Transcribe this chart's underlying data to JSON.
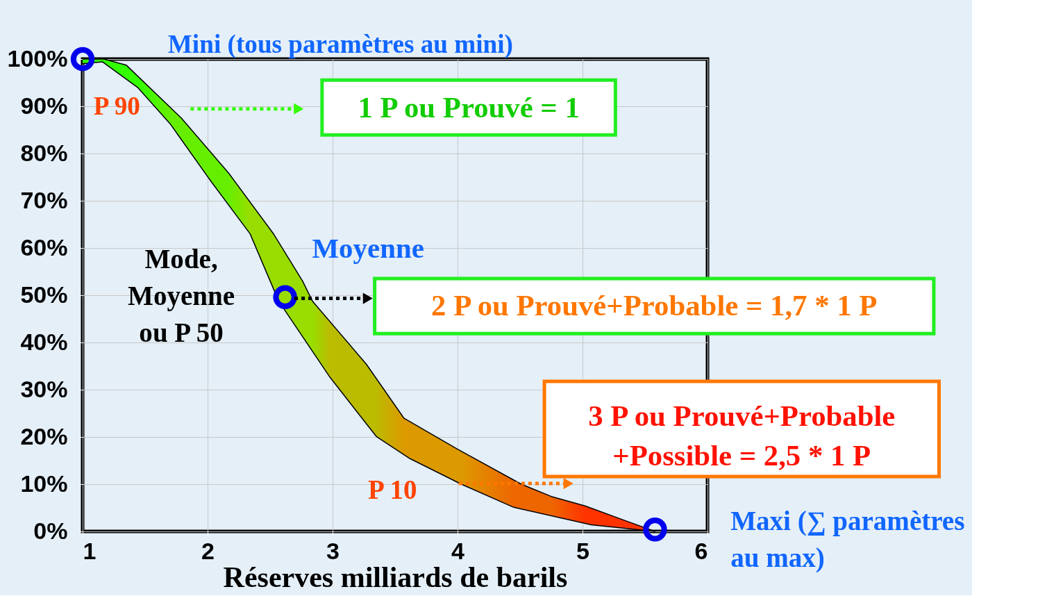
{
  "chart_data": {
    "type": "area",
    "xlabel": "Réserves milliards de barils",
    "xlim": [
      1,
      6
    ],
    "xticks": [
      1,
      2,
      3,
      4,
      5,
      6
    ],
    "ylim": [
      0,
      100
    ],
    "yticks": [
      {
        "value": 0,
        "label": "0%"
      },
      {
        "value": 10,
        "label": "10%"
      },
      {
        "value": 20,
        "label": "20%"
      },
      {
        "value": 30,
        "label": "30%"
      },
      {
        "value": 40,
        "label": "40%"
      },
      {
        "value": 50,
        "label": "50%"
      },
      {
        "value": 60,
        "label": "60%"
      },
      {
        "value": 70,
        "label": "70%"
      },
      {
        "value": 80,
        "label": "80%"
      },
      {
        "value": 90,
        "label": "90%"
      },
      {
        "value": 100,
        "label": "100%"
      }
    ],
    "grid": true,
    "series": [
      {
        "x": [
          1.0,
          1.17,
          1.35,
          1.79,
          2.17,
          2.53,
          2.76,
          2.84,
          3.27,
          3.57,
          4.0,
          4.51,
          4.75,
          5.02,
          5.34,
          5.58,
          5.07,
          4.45,
          4.03,
          3.62,
          3.35,
          2.98,
          2.57,
          2.34,
          2.03,
          1.7,
          1.44,
          1.16,
          1.0
        ],
        "values": [
          100,
          100,
          98.7,
          87.5,
          75.8,
          62.9,
          53,
          48.7,
          35.4,
          24,
          17.4,
          10,
          7.4,
          5.4,
          2.3,
          0,
          1.4,
          5.1,
          10,
          15.4,
          20.1,
          32.6,
          48.7,
          63,
          74,
          86.3,
          94,
          99.4,
          99
        ],
        "colors": [
          "#33ff00",
          "#33ff00",
          "#33ff00",
          "#66ee00",
          "#66ee00",
          "#99dd00",
          "#99dd00",
          "#99dd00",
          "#bbbb00",
          "#dd9900",
          "#dd9900",
          "#ee6600",
          "#ee6600",
          "#ff3300",
          "#ff3300",
          "#ff3300",
          "#ff3300",
          "#ee6600",
          "#dd9900",
          "#dd9900",
          "#bbbb00",
          "#bbbb00",
          "#99dd00",
          "#99dd00",
          "#66ee00",
          "#66ee00",
          "#33ff00",
          "#33ff00",
          "#33ff00"
        ]
      },
      {
        "type": "scatter",
        "x": [
          1.0,
          2.62,
          5.58
        ],
        "values": [
          100,
          49.6,
          0.4
        ],
        "color": "#0000ee",
        "marker": "circle"
      }
    ],
    "annotations": [
      "Mini (tous paramètres au mini)",
      "P 90",
      "1 P ou Prouvé = 1",
      "Moyenne",
      "Mode,\nMoyenne\nou P 50",
      "2 P ou Prouvé+Probable = 1,7 * 1 P",
      "3 P ou Prouvé+Probable\n+Possible =  2,5 * 1 P",
      "P 10",
      "Maxi (∑ paramètres\nau max)"
    ]
  }
}
